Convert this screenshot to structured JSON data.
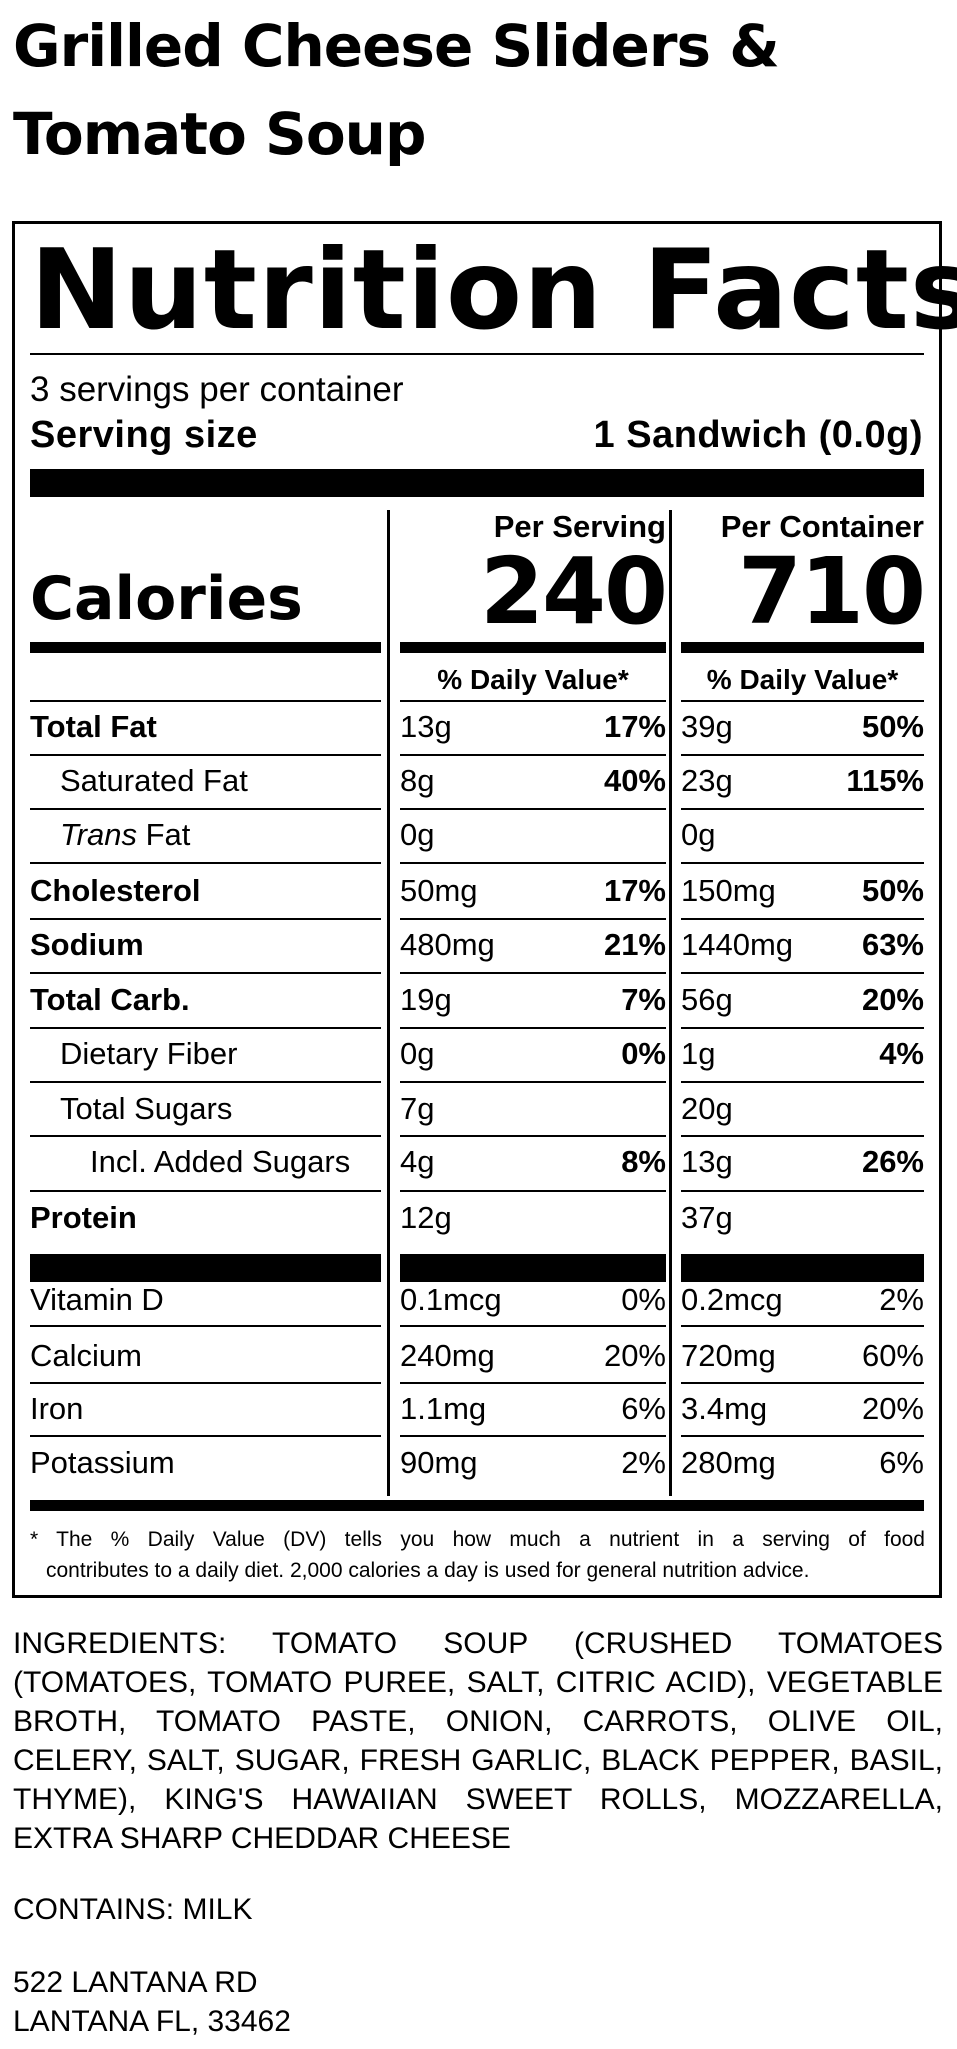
{
  "product": {
    "title_line1": "Grilled Cheese Sliders &",
    "title_line2": "Tomato Soup"
  },
  "label": {
    "title": "Nutrition Facts",
    "servings_per_container": "3 servings per container",
    "serving_size_label": "Serving size",
    "serving_size_value": "1 Sandwich (0.0g)",
    "per_serving_label": "Per Serving",
    "per_container_label": "Per Container",
    "calories_label": "Calories",
    "calories_per_serving": "240",
    "calories_per_container": "710",
    "daily_value_header": "% Daily Value*"
  },
  "nutrients": [
    {
      "name": "Total Fat",
      "serving_amount": "13g",
      "serving_dv": "17%",
      "container_amount": "39g",
      "container_dv": "50%"
    },
    {
      "name": "Saturated Fat",
      "serving_amount": "8g",
      "serving_dv": "40%",
      "container_amount": "23g",
      "container_dv": "115%"
    },
    {
      "name_italic": "Trans",
      "name_rest": " Fat",
      "serving_amount": "0g",
      "serving_dv": "",
      "container_amount": "0g",
      "container_dv": ""
    },
    {
      "name": "Cholesterol",
      "serving_amount": "50mg",
      "serving_dv": "17%",
      "container_amount": "150mg",
      "container_dv": "50%"
    },
    {
      "name": "Sodium",
      "serving_amount": "480mg",
      "serving_dv": "21%",
      "container_amount": "1440mg",
      "container_dv": "63%"
    },
    {
      "name": "Total Carb.",
      "serving_amount": "19g",
      "serving_dv": "7%",
      "container_amount": "56g",
      "container_dv": "20%"
    },
    {
      "name": "Dietary Fiber",
      "serving_amount": "0g",
      "serving_dv": "0%",
      "container_amount": "1g",
      "container_dv": "4%"
    },
    {
      "name": "Total Sugars",
      "serving_amount": "7g",
      "serving_dv": "",
      "container_amount": "20g",
      "container_dv": ""
    },
    {
      "name": "Incl. Added Sugars",
      "serving_amount": "4g",
      "serving_dv": "8%",
      "container_amount": "13g",
      "container_dv": "26%"
    },
    {
      "name": "Protein",
      "serving_amount": "12g",
      "serving_dv": "",
      "container_amount": "37g",
      "container_dv": ""
    }
  ],
  "vitamins": [
    {
      "name": "Vitamin D",
      "serving_amount": "0.1mcg",
      "serving_dv": "0%",
      "container_amount": "0.2mcg",
      "container_dv": "2%"
    },
    {
      "name": "Calcium",
      "serving_amount": "240mg",
      "serving_dv": "20%",
      "container_amount": "720mg",
      "container_dv": "60%"
    },
    {
      "name": "Iron",
      "serving_amount": "1.1mg",
      "serving_dv": "6%",
      "container_amount": "3.4mg",
      "container_dv": "20%"
    },
    {
      "name": "Potassium",
      "serving_amount": "90mg",
      "serving_dv": "2%",
      "container_amount": "280mg",
      "container_dv": "6%"
    }
  ],
  "footnote": {
    "line1": "* The % Daily Value (DV) tells you how much a nutrient in a serving of food",
    "line2": "contributes to a daily diet. 2,000 calories a day is used for general nutrition advice."
  },
  "ingredients": "INGREDIENTS: TOMATO SOUP (CRUSHED TOMATOES (TOMATOES, TOMATO PUREE, SALT, CITRIC ACID), VEGETABLE BROTH, TOMATO PASTE, ONION, CARROTS, OLIVE OIL, CELERY, SALT, SUGAR, FRESH GARLIC, BLACK PEPPER, BASIL, THYME), KING'S HAWAIIAN SWEET ROLLS, MOZZARELLA, EXTRA SHARP CHEDDAR CHEESE",
  "contains": "CONTAINS: MILK",
  "address": {
    "line1": "522 LANTANA RD",
    "line2": "LANTANA FL, 33462"
  }
}
